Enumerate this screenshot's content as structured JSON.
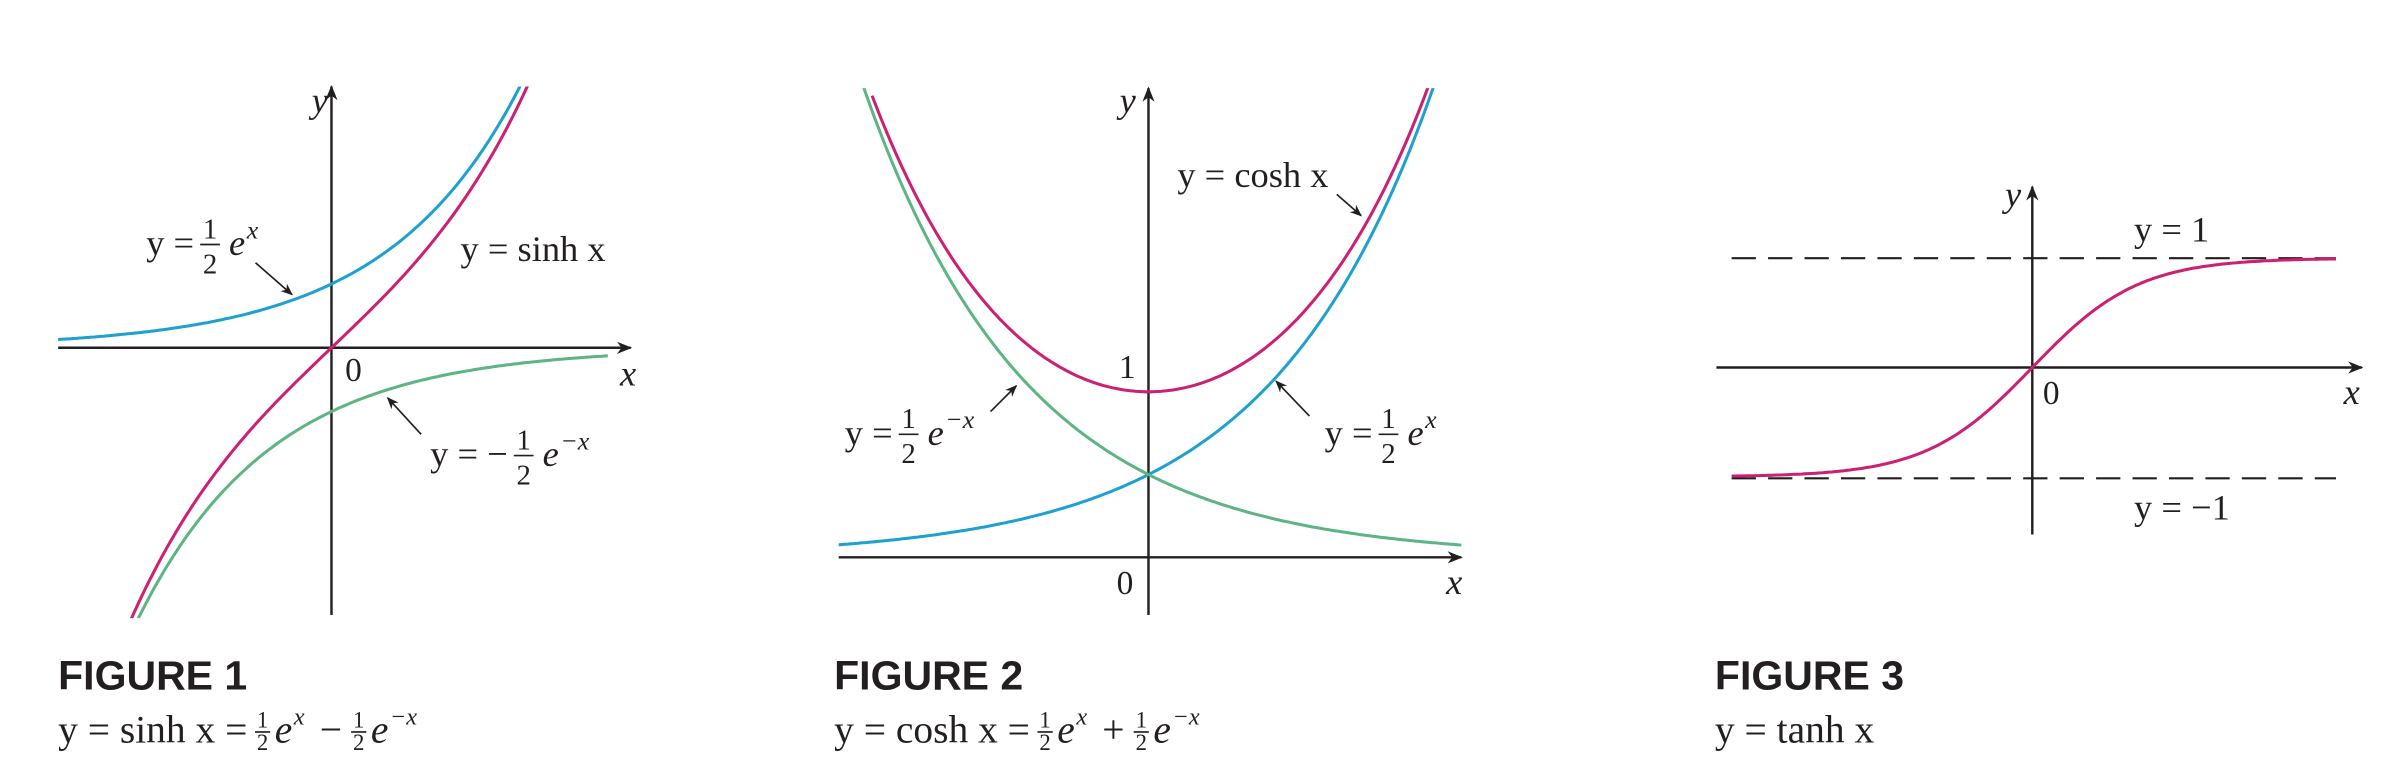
{
  "figures": [
    {
      "axis_x": "x",
      "axis_y": "y",
      "origin": "0",
      "labels": [
        {
          "lhs": "y =",
          "num": "1",
          "den": "2",
          "base": "e",
          "exp": "x"
        },
        {
          "lhs": "y = sinh x"
        },
        {
          "lhs": "y = −",
          "num": "1",
          "den": "2",
          "base": "e",
          "exp": "−x"
        }
      ],
      "caption": "FIGURE 1",
      "formula": {
        "lhs": "y = sinh x =",
        "terms": [
          {
            "num": "1",
            "den": "2",
            "base": "e",
            "exp": "x"
          },
          {
            "op": "−",
            "num": "1",
            "den": "2",
            "base": "e",
            "exp": "−x"
          }
        ]
      }
    },
    {
      "axis_x": "x",
      "axis_y": "y",
      "origin": "0",
      "tick": "1",
      "labels": [
        {
          "lhs": "y = cosh x"
        },
        {
          "lhs": "y =",
          "num": "1",
          "den": "2",
          "base": "e",
          "exp": "−x"
        },
        {
          "lhs": "y =",
          "num": "1",
          "den": "2",
          "base": "e",
          "exp": "x"
        }
      ],
      "caption": "FIGURE 2",
      "formula": {
        "lhs": "y = cosh x =",
        "terms": [
          {
            "num": "1",
            "den": "2",
            "base": "e",
            "exp": "x"
          },
          {
            "op": "+",
            "num": "1",
            "den": "2",
            "base": "e",
            "exp": "−x"
          }
        ]
      }
    },
    {
      "axis_x": "x",
      "axis_y": "y",
      "origin": "0",
      "labels": [
        {
          "lhs": "y = 1"
        },
        {
          "lhs": "y = −1"
        }
      ],
      "caption": "FIGURE 3",
      "formula": {
        "lhs": "y = tanh x",
        "terms": []
      }
    }
  ]
}
